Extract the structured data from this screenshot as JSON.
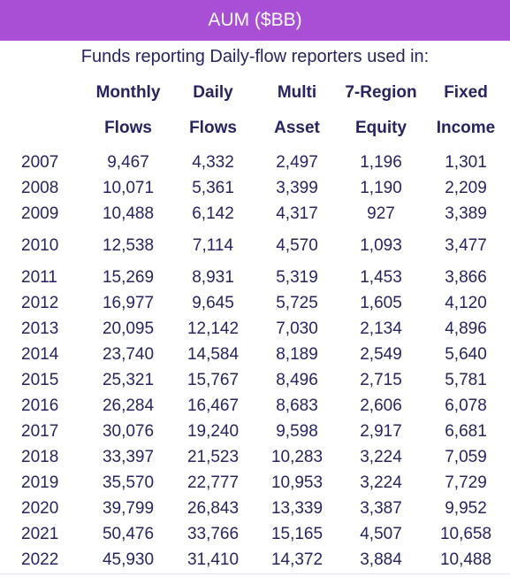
{
  "title": "AUM ($BB)",
  "subtitle": "Funds reporting Daily-flow reporters used in:",
  "colors": {
    "title_bar": "#a94fd6",
    "text": "#27245f"
  },
  "chart_data": {
    "type": "table",
    "title": "AUM ($BB)",
    "columns": [
      {
        "line1": "Monthly",
        "line2": "Flows"
      },
      {
        "line1": "Daily",
        "line2": "Flows"
      },
      {
        "line1": "Multi",
        "line2": "Asset"
      },
      {
        "line1": "7-Region",
        "line2": "Equity"
      },
      {
        "line1": "Fixed",
        "line2": "Income"
      }
    ],
    "rows": [
      {
        "year": "2007",
        "values": [
          "9,467",
          "4,332",
          "2,497",
          "1,196",
          "1,301"
        ]
      },
      {
        "year": "2008",
        "values": [
          "10,071",
          "5,361",
          "3,399",
          "1,190",
          "2,209"
        ]
      },
      {
        "year": "2009",
        "values": [
          "10,488",
          "6,142",
          "4,317",
          "927",
          "3,389"
        ]
      },
      {
        "year": "2010",
        "values": [
          "12,538",
          "7,114",
          "4,570",
          "1,093",
          "3,477"
        ]
      },
      {
        "year": "2011",
        "values": [
          "15,269",
          "8,931",
          "5,319",
          "1,453",
          "3,866"
        ]
      },
      {
        "year": "2012",
        "values": [
          "16,977",
          "9,645",
          "5,725",
          "1,605",
          "4,120"
        ]
      },
      {
        "year": "2013",
        "values": [
          "20,095",
          "12,142",
          "7,030",
          "2,134",
          "4,896"
        ]
      },
      {
        "year": "2014",
        "values": [
          "23,740",
          "14,584",
          "8,189",
          "2,549",
          "5,640"
        ]
      },
      {
        "year": "2015",
        "values": [
          "25,321",
          "15,767",
          "8,496",
          "2,715",
          "5,781"
        ]
      },
      {
        "year": "2016",
        "values": [
          "26,284",
          "16,467",
          "8,683",
          "2,606",
          "6,078"
        ]
      },
      {
        "year": "2017",
        "values": [
          "30,076",
          "19,240",
          "9,598",
          "2,917",
          "6,681"
        ]
      },
      {
        "year": "2018",
        "values": [
          "33,397",
          "21,523",
          "10,283",
          "3,224",
          "7,059"
        ]
      },
      {
        "year": "2019",
        "values": [
          "35,570",
          "22,777",
          "10,953",
          "3,224",
          "7,729"
        ]
      },
      {
        "year": "2020",
        "values": [
          "39,799",
          "26,843",
          "13,339",
          "3,387",
          "9,952"
        ]
      },
      {
        "year": "2021",
        "values": [
          "50,476",
          "33,766",
          "15,165",
          "4,507",
          "10,658"
        ]
      },
      {
        "year": "2022",
        "values": [
          "45,930",
          "31,410",
          "14,372",
          "3,884",
          "10,488"
        ]
      }
    ]
  }
}
